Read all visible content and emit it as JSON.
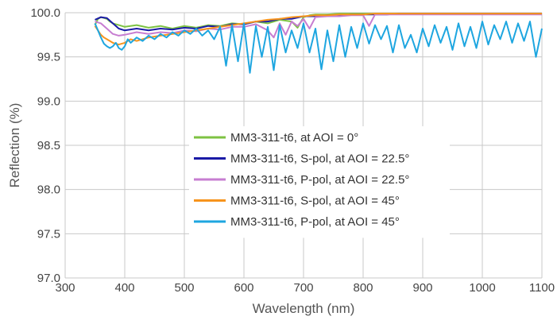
{
  "chart_data": {
    "type": "line",
    "title": "",
    "xlabel": "Wavelength (nm)",
    "ylabel": "Reflection (%)",
    "xlim": [
      300,
      1100
    ],
    "ylim": [
      97.0,
      100.0
    ],
    "xticks": [
      "300",
      "400",
      "500",
      "600",
      "700",
      "800",
      "900",
      "1000",
      "1100"
    ],
    "yticks": [
      "97.0",
      "97.5",
      "98.0",
      "98.5",
      "99.0",
      "99.5",
      "100.0"
    ],
    "grid": true,
    "legend_position": "center",
    "series": [
      {
        "name": "MM3-311-t6, at AOI = 0°",
        "color": "#7dc242",
        "x": [
          350,
          355,
          360,
          365,
          370,
          375,
          380,
          390,
          400,
          420,
          440,
          460,
          480,
          500,
          520,
          540,
          560,
          580,
          600,
          620,
          640,
          660,
          680,
          690,
          700,
          710,
          720,
          740,
          760,
          780,
          800,
          820,
          840,
          860,
          880,
          900,
          920,
          940,
          960,
          980,
          1000,
          1020,
          1040,
          1060,
          1080,
          1100
        ],
        "y": [
          99.86,
          99.93,
          99.95,
          99.94,
          99.93,
          99.9,
          99.88,
          99.86,
          99.84,
          99.86,
          99.83,
          99.85,
          99.82,
          99.85,
          99.83,
          99.86,
          99.85,
          99.88,
          99.87,
          99.9,
          99.88,
          99.92,
          99.9,
          99.83,
          99.95,
          99.97,
          99.98,
          99.98,
          99.99,
          99.99,
          99.99,
          99.99,
          99.99,
          99.99,
          99.99,
          99.99,
          99.99,
          99.99,
          99.99,
          99.99,
          99.99,
          99.99,
          99.99,
          99.99,
          99.99,
          99.99
        ]
      },
      {
        "name": "MM3-311-t6, S-pol, at AOI = 22.5°",
        "color": "#1a1aa6",
        "x": [
          350,
          360,
          370,
          380,
          390,
          400,
          420,
          440,
          460,
          480,
          500,
          520,
          540,
          560,
          580,
          600,
          620,
          640,
          660,
          680,
          700,
          720,
          740,
          760,
          780,
          800,
          820,
          840,
          860,
          880,
          900,
          920,
          940,
          960,
          980,
          1000,
          1020,
          1040,
          1060,
          1080,
          1100
        ],
        "y": [
          99.92,
          99.95,
          99.94,
          99.88,
          99.82,
          99.8,
          99.82,
          99.8,
          99.82,
          99.81,
          99.83,
          99.82,
          99.85,
          99.84,
          99.87,
          99.87,
          99.9,
          99.9,
          99.93,
          99.93,
          99.96,
          99.96,
          99.97,
          99.97,
          99.98,
          99.98,
          99.98,
          99.98,
          99.99,
          99.99,
          99.99,
          99.99,
          99.99,
          99.99,
          99.99,
          99.99,
          99.99,
          99.99,
          99.99,
          99.99,
          99.99
        ]
      },
      {
        "name": "MM3-311-t6, P-pol, at AOI = 22.5°",
        "color": "#c77dd1",
        "x": [
          350,
          360,
          370,
          380,
          390,
          400,
          420,
          440,
          460,
          480,
          500,
          520,
          540,
          560,
          580,
          600,
          620,
          640,
          650,
          660,
          670,
          680,
          690,
          700,
          710,
          720,
          740,
          760,
          780,
          800,
          810,
          820,
          840,
          860,
          880,
          900,
          920,
          940,
          960,
          980,
          1000,
          1020,
          1040,
          1060,
          1080,
          1100
        ],
        "y": [
          99.9,
          99.88,
          99.82,
          99.76,
          99.74,
          99.75,
          99.78,
          99.76,
          99.78,
          99.77,
          99.8,
          99.79,
          99.82,
          99.81,
          99.84,
          99.84,
          99.87,
          99.8,
          99.72,
          99.88,
          99.75,
          99.9,
          99.85,
          99.93,
          99.82,
          99.95,
          99.96,
          99.96,
          99.97,
          99.97,
          99.85,
          99.98,
          99.98,
          99.98,
          99.98,
          99.98,
          99.98,
          99.98,
          99.98,
          99.98,
          99.98,
          99.98,
          99.98,
          99.98,
          99.98,
          99.98
        ]
      },
      {
        "name": "MM3-311-t6, S-pol, at AOI = 45°",
        "color": "#f7941d",
        "x": [
          350,
          355,
          360,
          365,
          370,
          375,
          380,
          390,
          400,
          410,
          420,
          440,
          460,
          480,
          500,
          520,
          540,
          560,
          580,
          600,
          620,
          640,
          660,
          680,
          700,
          720,
          740,
          760,
          780,
          800,
          820,
          840,
          860,
          880,
          900,
          920,
          940,
          960,
          980,
          1000,
          1020,
          1040,
          1060,
          1080,
          1100
        ],
        "y": [
          99.85,
          99.8,
          99.75,
          99.72,
          99.7,
          99.68,
          99.66,
          99.64,
          99.66,
          99.7,
          99.68,
          99.72,
          99.74,
          99.76,
          99.78,
          99.8,
          99.82,
          99.84,
          99.86,
          99.88,
          99.9,
          99.92,
          99.93,
          99.95,
          99.96,
          99.97,
          99.97,
          99.98,
          99.98,
          99.98,
          99.99,
          99.99,
          99.99,
          99.99,
          99.99,
          99.99,
          99.99,
          99.99,
          99.99,
          99.99,
          99.99,
          99.99,
          99.99,
          99.99,
          99.99
        ]
      },
      {
        "name": "MM3-311-t6, P-pol, at AOI = 45°",
        "color": "#1ea6e0",
        "x": [
          350,
          355,
          360,
          365,
          370,
          375,
          380,
          385,
          390,
          395,
          400,
          405,
          410,
          420,
          430,
          440,
          450,
          460,
          470,
          480,
          490,
          500,
          510,
          520,
          530,
          540,
          550,
          560,
          570,
          580,
          590,
          600,
          610,
          620,
          630,
          640,
          650,
          660,
          670,
          680,
          690,
          700,
          710,
          720,
          730,
          740,
          750,
          760,
          770,
          780,
          790,
          800,
          810,
          820,
          830,
          840,
          850,
          860,
          870,
          880,
          890,
          900,
          910,
          920,
          930,
          940,
          950,
          960,
          970,
          980,
          990,
          1000,
          1010,
          1020,
          1030,
          1040,
          1050,
          1060,
          1070,
          1080,
          1090,
          1100
        ],
        "y": [
          99.88,
          99.8,
          99.72,
          99.65,
          99.62,
          99.6,
          99.62,
          99.66,
          99.6,
          99.58,
          99.62,
          99.7,
          99.66,
          99.72,
          99.68,
          99.74,
          99.7,
          99.76,
          99.72,
          99.78,
          99.74,
          99.8,
          99.76,
          99.82,
          99.74,
          99.8,
          99.7,
          99.84,
          99.4,
          99.86,
          99.45,
          99.88,
          99.32,
          99.85,
          99.5,
          99.84,
          99.35,
          99.86,
          99.55,
          99.8,
          99.6,
          99.88,
          99.55,
          99.82,
          99.36,
          99.8,
          99.45,
          99.86,
          99.5,
          99.84,
          99.6,
          99.88,
          99.65,
          99.86,
          99.7,
          99.85,
          99.55,
          99.86,
          99.6,
          99.75,
          99.55,
          99.82,
          99.62,
          99.86,
          99.66,
          99.84,
          99.58,
          99.88,
          99.62,
          99.84,
          99.6,
          99.9,
          99.64,
          99.86,
          99.7,
          99.9,
          99.66,
          99.88,
          99.68,
          99.9,
          99.5,
          99.82
        ]
      }
    ]
  }
}
